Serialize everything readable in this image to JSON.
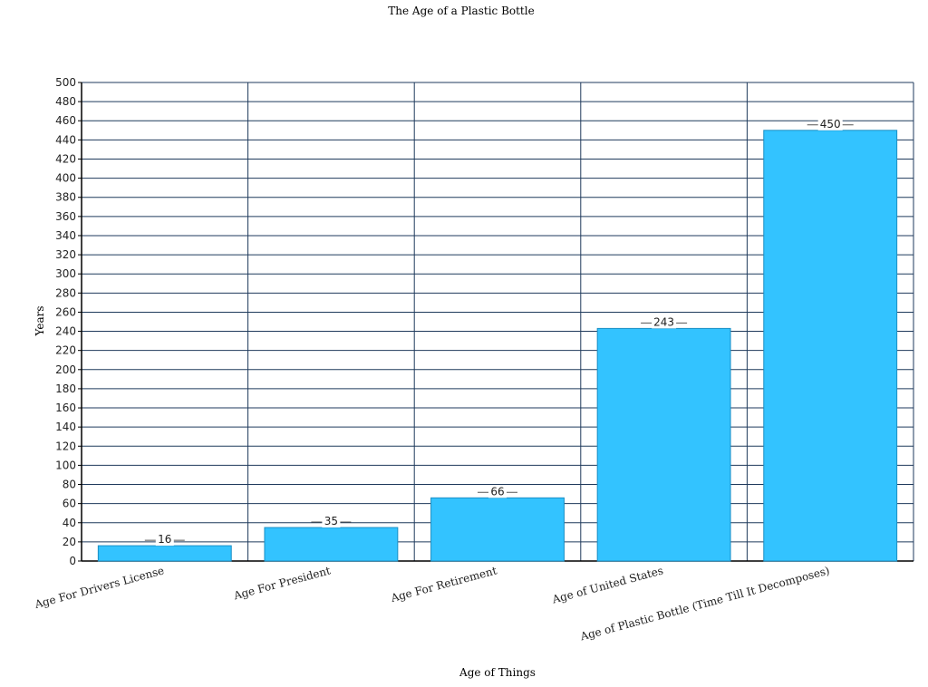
{
  "chart_data": {
    "type": "bar",
    "title": "The Age of a Plastic Bottle",
    "xlabel": "Age of Things",
    "ylabel": "Years",
    "categories": [
      "Age For Drivers License",
      "Age For President",
      "Age For Retirement",
      "Age of United States",
      "Age of Plastic Bottle (Time Till It Decomposes)"
    ],
    "values": [
      16,
      35,
      66,
      243,
      450
    ],
    "data_labels": [
      "16",
      "35",
      "66",
      "243",
      "450"
    ],
    "ylim": [
      0,
      500
    ],
    "ytick_step": 20,
    "grid": true,
    "legend": "none",
    "colors": {
      "bar_fill": "#33c3ff",
      "bar_stroke": "#1a8fc4",
      "grid": "#1f3a5c",
      "axis": "#000000"
    }
  }
}
